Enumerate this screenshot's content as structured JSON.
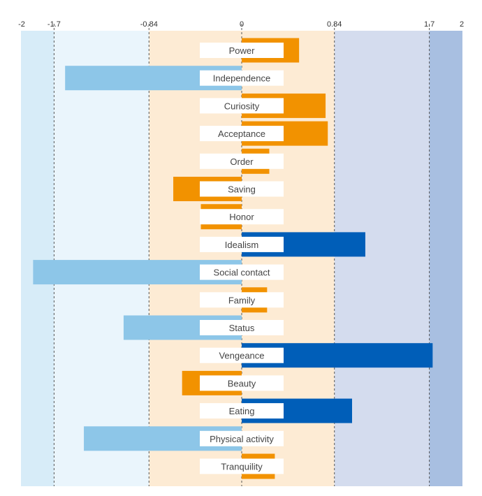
{
  "chart_data": {
    "type": "bar",
    "orientation": "horizontal",
    "xlim": [
      -2,
      2
    ],
    "ticks": [
      -2,
      -1.7,
      -0.84,
      0,
      0.84,
      1.7,
      2
    ],
    "tick_labels": [
      "-2",
      "-1.7",
      "-0.84",
      "0",
      "0.84",
      "1.7",
      "2"
    ],
    "grid_lines_dashed_at": [
      -1.7,
      -0.84,
      0.84,
      1.7
    ],
    "bands": [
      {
        "from": -2,
        "to": -1.7,
        "color": "#d7ecf8"
      },
      {
        "from": -1.7,
        "to": -0.84,
        "color": "#eaf5fc"
      },
      {
        "from": -0.84,
        "to": 0.84,
        "color": "#fdebd4"
      },
      {
        "from": 0.84,
        "to": 1.7,
        "color": "#d4dcee"
      },
      {
        "from": 1.7,
        "to": 2,
        "color": "#a8bfe1"
      }
    ],
    "categories": [
      "Power",
      "Independence",
      "Curiosity",
      "Acceptance",
      "Order",
      "Saving",
      "Honor",
      "Idealism",
      "Social contact",
      "Family",
      "Status",
      "Vengeance",
      "Beauty",
      "Eating",
      "Physical activity",
      "Tranquility"
    ],
    "values": [
      0.52,
      -1.6,
      0.76,
      0.78,
      0.25,
      -0.62,
      -0.37,
      1.12,
      -1.89,
      0.23,
      -1.07,
      1.73,
      -0.54,
      1.0,
      -1.43,
      0.3
    ],
    "colors": {
      "neutral": "#f29200",
      "low": "#8dc6e8",
      "high": "#005eb8"
    }
  }
}
